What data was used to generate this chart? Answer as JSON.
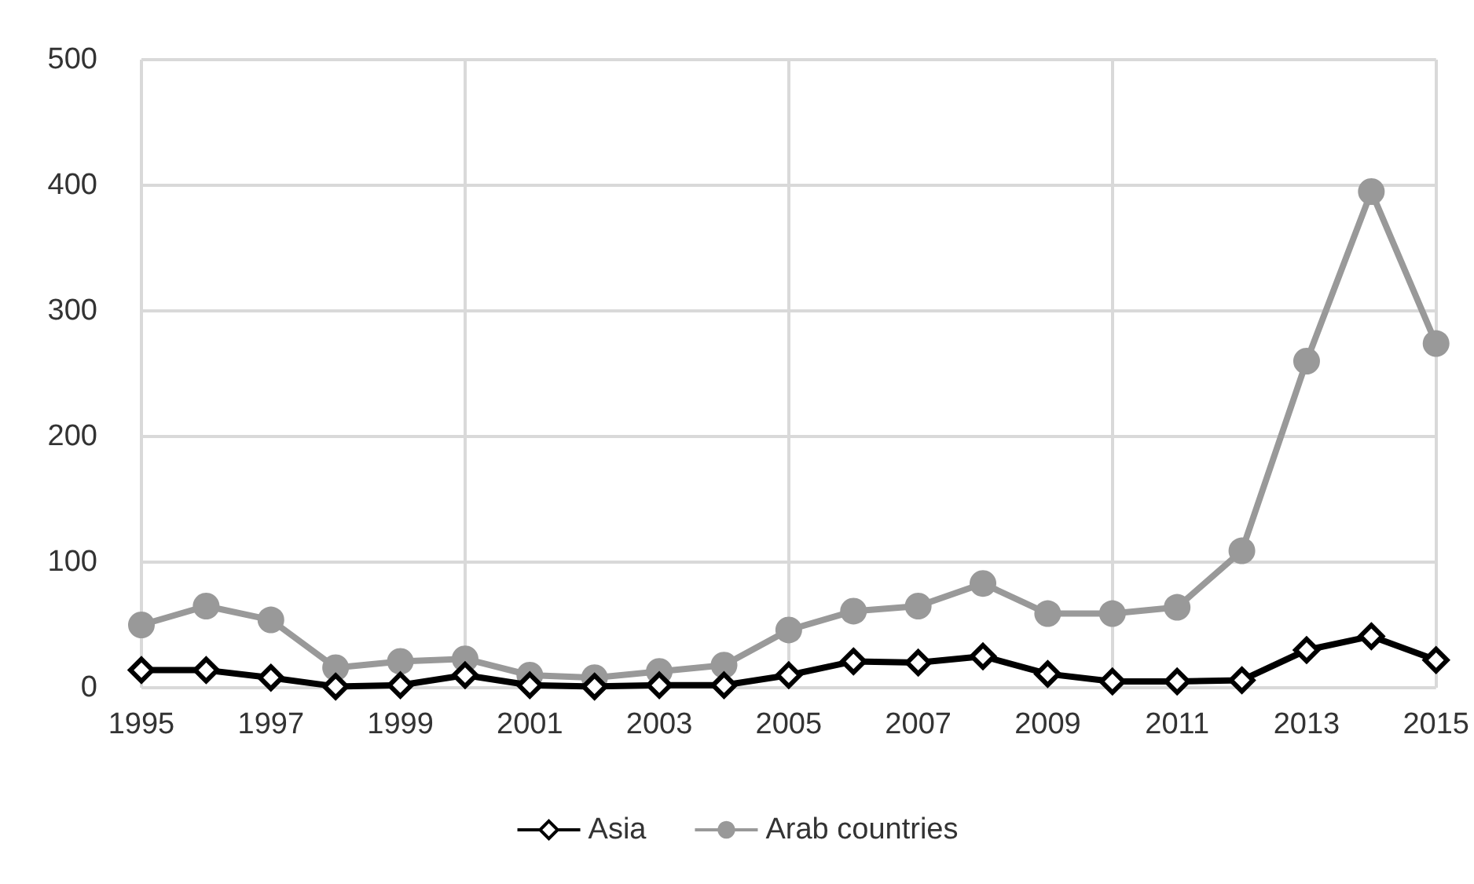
{
  "chart_data": {
    "type": "line",
    "x": [
      1995,
      1996,
      1997,
      1998,
      1999,
      2000,
      2001,
      2002,
      2003,
      2004,
      2005,
      2006,
      2007,
      2008,
      2009,
      2010,
      2011,
      2012,
      2013,
      2014,
      2015
    ],
    "xlim": [
      1995,
      2015
    ],
    "xticks": [
      1995,
      1997,
      1999,
      2001,
      2003,
      2005,
      2007,
      2009,
      2011,
      2013,
      2015
    ],
    "ylim": [
      0,
      500
    ],
    "yticks": [
      0,
      100,
      200,
      300,
      400,
      500
    ],
    "grid": true,
    "legend": "bottom",
    "series": [
      {
        "name": "Asia",
        "color": "#000000",
        "marker": "diamond",
        "values": [
          14,
          14,
          8,
          1,
          2,
          10,
          2,
          1,
          2,
          2,
          10,
          21,
          20,
          25,
          11,
          5,
          5,
          6,
          30,
          41,
          22
        ]
      },
      {
        "name": "Arab countries",
        "color": "#999999",
        "marker": "circle",
        "values": [
          50,
          65,
          54,
          16,
          21,
          23,
          10,
          8,
          13,
          18,
          46,
          61,
          65,
          83,
          59,
          59,
          64,
          109,
          260,
          395,
          274
        ]
      }
    ]
  }
}
